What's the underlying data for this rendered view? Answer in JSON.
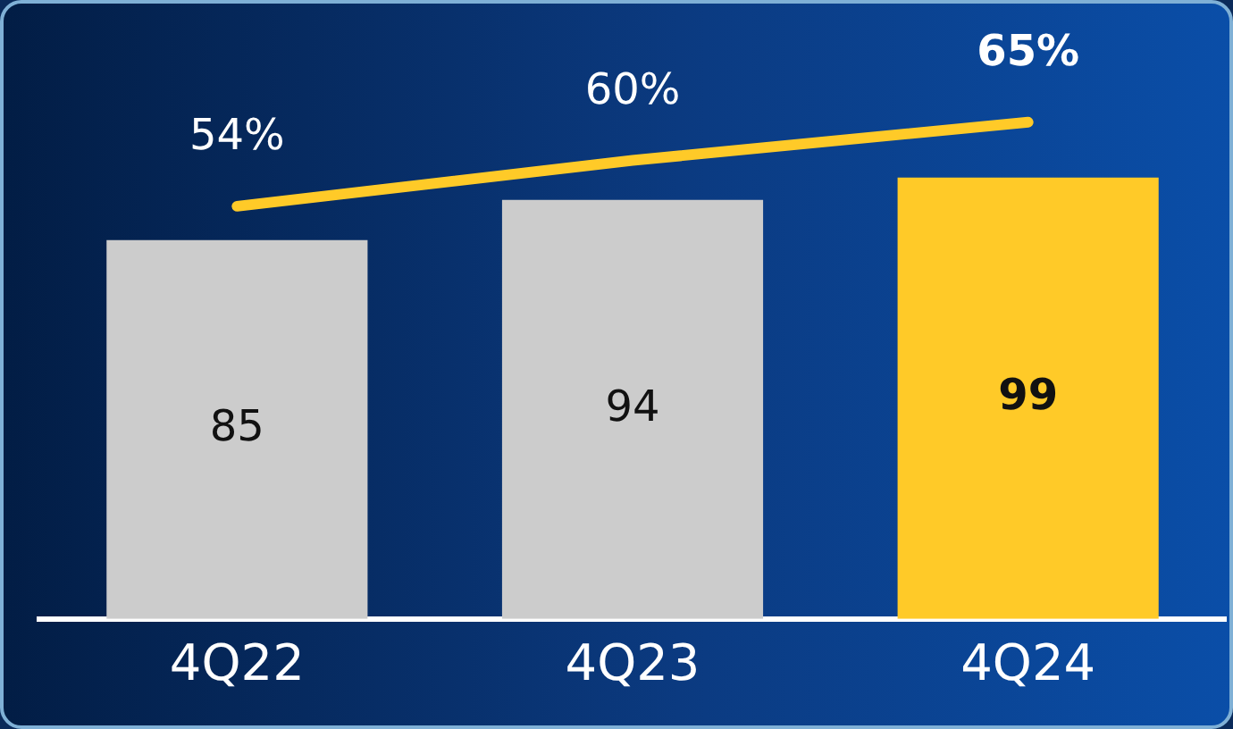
{
  "chart_data": {
    "type": "bar",
    "categories": [
      "4Q22",
      "4Q23",
      "4Q24"
    ],
    "series": [
      {
        "colors": [
          "#cccccc",
          "#cccccc",
          "#ffca28"
        ],
        "values": [
          85,
          94,
          99
        ]
      },
      {
        "type": "line",
        "axis": "y2",
        "color": "#ffca28",
        "values": [
          54,
          60,
          65
        ],
        "value_labels": [
          "54%",
          "60%",
          "65%"
        ]
      }
    ],
    "data_labels": true,
    "tick_labels": "x",
    "marker": "none"
  }
}
